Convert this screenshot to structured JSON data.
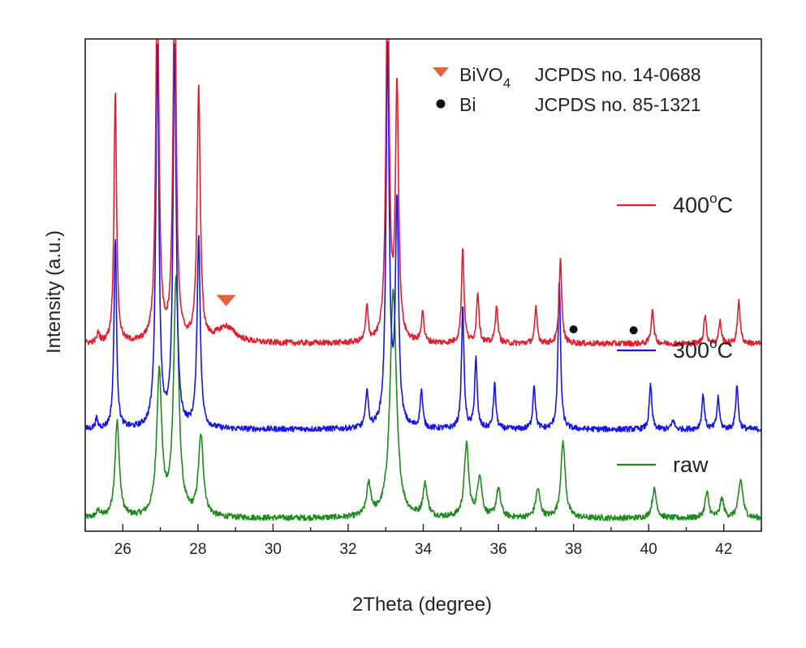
{
  "chart_data": {
    "type": "line",
    "xlabel": "2Theta (degree)",
    "ylabel": "Intensity (a.u.)",
    "xlim": [
      25,
      43
    ],
    "x_ticks": [
      26,
      28,
      30,
      32,
      34,
      36,
      38,
      40,
      42
    ],
    "y_ticks": "none",
    "grid": false,
    "baseline_noise": 0.009,
    "series": [
      {
        "name": "raw",
        "label_text": "raw",
        "color": "#1e8a1e",
        "offset": 0.0,
        "baseline": 0.02,
        "peaks": [
          {
            "x": 25.35,
            "h": 0.02,
            "w": 0.06
          },
          {
            "x": 25.85,
            "h": 0.3,
            "w": 0.07
          },
          {
            "x": 26.97,
            "h": 0.45,
            "w": 0.08
          },
          {
            "x": 27.42,
            "h": 0.75,
            "w": 0.08
          },
          {
            "x": 28.08,
            "h": 0.25,
            "w": 0.08
          },
          {
            "x": 32.55,
            "h": 0.1,
            "w": 0.07
          },
          {
            "x": 33.2,
            "h": 0.72,
            "w": 0.1
          },
          {
            "x": 34.05,
            "h": 0.1,
            "w": 0.07
          },
          {
            "x": 35.15,
            "h": 0.23,
            "w": 0.07
          },
          {
            "x": 35.5,
            "h": 0.13,
            "w": 0.07
          },
          {
            "x": 36.0,
            "h": 0.09,
            "w": 0.07
          },
          {
            "x": 37.05,
            "h": 0.09,
            "w": 0.07
          },
          {
            "x": 37.72,
            "h": 0.24,
            "w": 0.07
          },
          {
            "x": 40.15,
            "h": 0.09,
            "w": 0.07
          },
          {
            "x": 41.55,
            "h": 0.08,
            "w": 0.06
          },
          {
            "x": 41.95,
            "h": 0.06,
            "w": 0.06
          },
          {
            "x": 42.45,
            "h": 0.12,
            "w": 0.07
          }
        ]
      },
      {
        "name": "300°C",
        "label_text": "300",
        "label_sup": "o",
        "label_suffix": "C",
        "color": "#1515e6",
        "offset": 0.28,
        "baseline": 0.02,
        "peaks": [
          {
            "x": 25.3,
            "h": 0.03,
            "w": 0.04
          },
          {
            "x": 25.8,
            "h": 0.6,
            "w": 0.04
          },
          {
            "x": 26.92,
            "h": 1.2,
            "w": 0.05
          },
          {
            "x": 27.38,
            "h": 1.2,
            "w": 0.05
          },
          {
            "x": 28.02,
            "h": 0.6,
            "w": 0.05
          },
          {
            "x": 32.5,
            "h": 0.12,
            "w": 0.04
          },
          {
            "x": 33.05,
            "h": 1.2,
            "w": 0.05
          },
          {
            "x": 33.3,
            "h": 0.7,
            "w": 0.05
          },
          {
            "x": 33.95,
            "h": 0.12,
            "w": 0.04
          },
          {
            "x": 35.05,
            "h": 0.38,
            "w": 0.04
          },
          {
            "x": 35.4,
            "h": 0.22,
            "w": 0.04
          },
          {
            "x": 35.9,
            "h": 0.14,
            "w": 0.04
          },
          {
            "x": 36.95,
            "h": 0.14,
            "w": 0.04
          },
          {
            "x": 37.62,
            "h": 0.47,
            "w": 0.04
          },
          {
            "x": 40.05,
            "h": 0.14,
            "w": 0.04
          },
          {
            "x": 40.65,
            "h": 0.03,
            "w": 0.04
          },
          {
            "x": 41.45,
            "h": 0.11,
            "w": 0.04
          },
          {
            "x": 41.85,
            "h": 0.1,
            "w": 0.04
          },
          {
            "x": 42.35,
            "h": 0.14,
            "w": 0.04
          }
        ]
      },
      {
        "name": "400°C",
        "label_text": "400",
        "label_sup": "o",
        "label_suffix": "C",
        "color": "#e01e2e",
        "offset": 0.54,
        "baseline": 0.03,
        "peaks": [
          {
            "x": 25.35,
            "h": 0.03,
            "w": 0.04
          },
          {
            "x": 25.8,
            "h": 0.8,
            "w": 0.04
          },
          {
            "x": 26.92,
            "h": 1.2,
            "w": 0.05
          },
          {
            "x": 27.38,
            "h": 1.2,
            "w": 0.05
          },
          {
            "x": 28.02,
            "h": 0.8,
            "w": 0.05
          },
          {
            "x": 28.75,
            "h": 0.05,
            "w": 0.3
          },
          {
            "x": 32.5,
            "h": 0.11,
            "w": 0.04
          },
          {
            "x": 33.05,
            "h": 1.2,
            "w": 0.05
          },
          {
            "x": 33.3,
            "h": 0.8,
            "w": 0.05
          },
          {
            "x": 33.98,
            "h": 0.1,
            "w": 0.04
          },
          {
            "x": 35.05,
            "h": 0.3,
            "w": 0.04
          },
          {
            "x": 35.45,
            "h": 0.16,
            "w": 0.04
          },
          {
            "x": 35.95,
            "h": 0.12,
            "w": 0.04
          },
          {
            "x": 37.0,
            "h": 0.11,
            "w": 0.04
          },
          {
            "x": 37.65,
            "h": 0.27,
            "w": 0.04
          },
          {
            "x": 40.1,
            "h": 0.11,
            "w": 0.04
          },
          {
            "x": 41.5,
            "h": 0.09,
            "w": 0.04
          },
          {
            "x": 41.9,
            "h": 0.07,
            "w": 0.04
          },
          {
            "x": 42.4,
            "h": 0.14,
            "w": 0.04
          }
        ]
      }
    ],
    "legend": [
      {
        "marker": "down-triangle",
        "color": "#e8603c",
        "label": "BiVO",
        "sub": "4",
        "ref": "JCPDS no. 14-0688"
      },
      {
        "marker": "circle",
        "color": "#111111",
        "label": "Bi",
        "ref": "JCPDS no. 85-1321"
      }
    ],
    "legend_position": "top-right",
    "annotations": [
      {
        "marker": "down-triangle",
        "color": "#e8603c",
        "x": 28.75,
        "series": "400°C"
      },
      {
        "marker": "circle",
        "color": "#111111",
        "x": 38.0,
        "series": "400°C"
      },
      {
        "marker": "circle",
        "color": "#111111",
        "x": 39.6,
        "series": "400°C"
      }
    ]
  }
}
